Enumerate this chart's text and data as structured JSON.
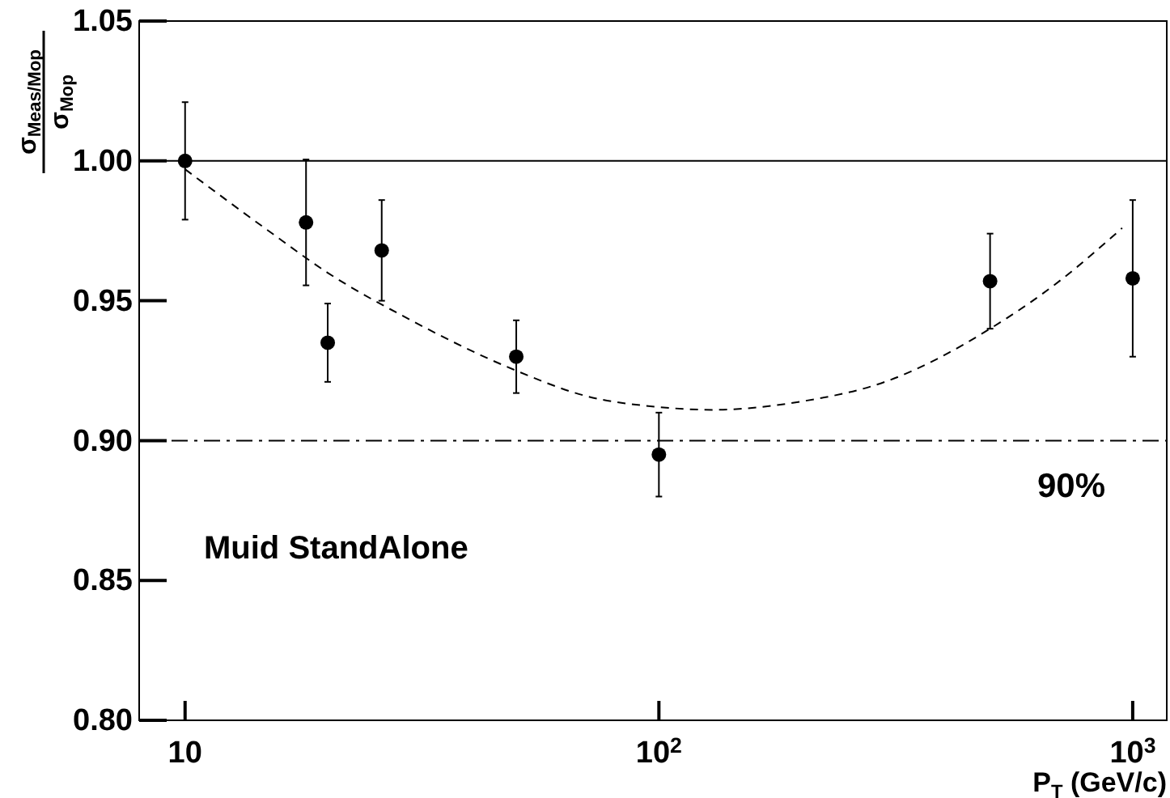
{
  "chart_data": {
    "type": "scatter",
    "xlabel": "P$_{T}$ (GeV/c)",
    "ylabel": "σ$_{Meas/Mop}$/σ$_{Mop}$",
    "log": "x",
    "grid": false,
    "marker": "circle",
    "xlim": [
      8,
      1180
    ],
    "xticks": [
      {
        "value": 10,
        "label": "10"
      },
      {
        "value": 100,
        "label": "10$^{2}$"
      },
      {
        "value": 1000,
        "label": "10$^{3}$"
      }
    ],
    "ylim": [
      0.8,
      1.05
    ],
    "yticks": [
      {
        "value": 0.8,
        "label": "0.80"
      },
      {
        "value": 0.85,
        "label": "0.85"
      },
      {
        "value": 0.9,
        "label": "0.90"
      },
      {
        "value": 0.95,
        "label": "0.95"
      },
      {
        "value": 1.0,
        "label": "1.00"
      },
      {
        "value": 1.05,
        "label": "1.05"
      }
    ],
    "series": [
      {
        "color": "#000000",
        "x": [
          10,
          18,
          20,
          26,
          50,
          100,
          500,
          1000
        ],
        "values": [
          1.0,
          0.978,
          0.935,
          0.968,
          0.93,
          0.895,
          0.957,
          0.958
        ],
        "errors": [
          0.021,
          0.0225,
          0.014,
          0.018,
          0.013,
          0.015,
          0.017,
          0.028
        ]
      },
      {
        "type": "line",
        "color": "#000000",
        "marker": "none",
        "line_style": "dashed",
        "x": [
          10,
          15,
          20,
          30,
          50,
          70,
          100,
          130,
          200,
          300,
          500,
          700,
          950
        ],
        "values": [
          0.997,
          0.975,
          0.96,
          0.943,
          0.925,
          0.916,
          0.912,
          0.911,
          0.914,
          0.921,
          0.94,
          0.957,
          0.976
        ]
      }
    ],
    "ref_lines": [
      {
        "axis": "y",
        "value": 1.0,
        "label": null,
        "color": "#000000",
        "line_style": "solid"
      },
      {
        "axis": "y",
        "value": 0.9,
        "label": "90%",
        "color": "#000000",
        "line_style": "dashdot"
      }
    ],
    "annotations": [
      "Muid StandAlone"
    ]
  }
}
